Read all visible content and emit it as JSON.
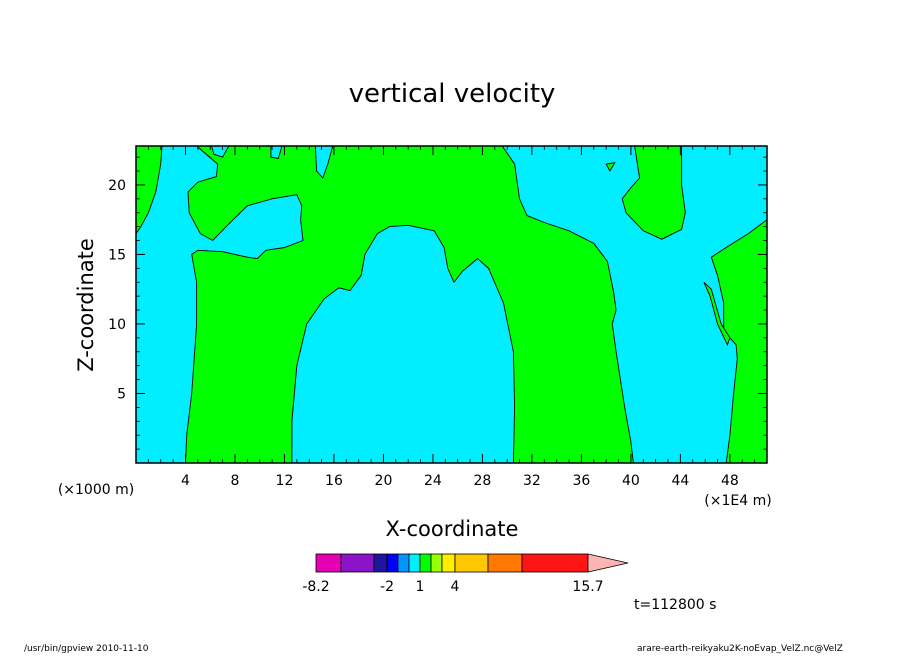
{
  "chart_data": {
    "type": "heatmap",
    "title": "vertical velocity",
    "xlabel": "X-coordinate",
    "ylabel": "Z-coordinate",
    "x_scale_note": "(×1000 m)",
    "x_unit_note": "(×1E4 m)",
    "xlim": [
      0,
      51
    ],
    "ylim": [
      0,
      22.8
    ],
    "x_ticks": [
      4,
      8,
      12,
      16,
      20,
      24,
      28,
      32,
      36,
      40,
      44,
      48
    ],
    "y_ticks": [
      5,
      10,
      15,
      20
    ],
    "fill_colors": {
      "positive": "#00ff00",
      "negative": "#00eeff"
    },
    "regions": [
      {
        "sign": "positive",
        "pts": [
          [
            0.0,
            22.8
          ],
          [
            2.1,
            22.8
          ],
          [
            2.0,
            21.5
          ],
          [
            1.6,
            19.5
          ],
          [
            1.0,
            18.0
          ],
          [
            0.4,
            17.0
          ],
          [
            0.0,
            16.5
          ]
        ]
      },
      {
        "sign": "positive",
        "pts": [
          [
            2.1,
            22.8
          ],
          [
            6.1,
            22.8
          ],
          [
            6.3,
            22.2
          ],
          [
            7.0,
            22.0
          ],
          [
            7.5,
            22.8
          ],
          [
            10.9,
            22.8
          ],
          [
            10.9,
            22.0
          ],
          [
            11.5,
            21.9
          ],
          [
            11.8,
            22.8
          ],
          [
            14.5,
            22.8
          ],
          [
            14.6,
            21.0
          ],
          [
            15.1,
            20.5
          ],
          [
            15.5,
            21.5
          ],
          [
            15.9,
            22.8
          ],
          [
            29.6,
            22.8
          ],
          [
            30.6,
            21.5
          ],
          [
            31.0,
            19.0
          ],
          [
            31.6,
            17.8
          ],
          [
            33.0,
            17.3
          ],
          [
            35.0,
            16.7
          ],
          [
            37.0,
            15.8
          ],
          [
            38.1,
            14.5
          ],
          [
            38.6,
            12.3
          ],
          [
            38.8,
            11.0
          ],
          [
            38.5,
            10.0
          ],
          [
            38.8,
            8.0
          ],
          [
            39.5,
            4.0
          ],
          [
            40.0,
            1.5
          ],
          [
            40.2,
            0.0
          ],
          [
            30.5,
            0.0
          ],
          [
            30.6,
            4.0
          ],
          [
            30.5,
            8.0
          ],
          [
            29.7,
            11.5
          ],
          [
            28.5,
            14.0
          ],
          [
            27.6,
            14.7
          ],
          [
            26.4,
            13.8
          ],
          [
            25.7,
            13.0
          ],
          [
            25.2,
            14.0
          ],
          [
            24.9,
            15.5
          ],
          [
            24.1,
            16.7
          ],
          [
            22.0,
            17.1
          ],
          [
            20.5,
            17.0
          ],
          [
            19.5,
            16.5
          ],
          [
            18.5,
            15.0
          ],
          [
            18.2,
            13.5
          ],
          [
            17.3,
            12.4
          ],
          [
            16.4,
            12.6
          ],
          [
            15.2,
            11.8
          ],
          [
            13.8,
            10.0
          ],
          [
            13.0,
            7.0
          ],
          [
            12.6,
            3.0
          ],
          [
            12.6,
            0.0
          ],
          [
            4.0,
            0.0
          ],
          [
            4.1,
            2.0
          ],
          [
            4.5,
            5.0
          ],
          [
            4.9,
            10.0
          ],
          [
            4.9,
            13.0
          ],
          [
            4.5,
            15.0
          ],
          [
            5.0,
            15.3
          ],
          [
            7.0,
            15.2
          ],
          [
            9.0,
            14.8
          ],
          [
            9.8,
            14.7
          ],
          [
            10.5,
            15.3
          ],
          [
            12.0,
            15.5
          ],
          [
            13.5,
            16.0
          ],
          [
            13.3,
            17.5
          ],
          [
            13.4,
            18.5
          ],
          [
            13.0,
            19.3
          ],
          [
            11.0,
            19.0
          ],
          [
            9.0,
            18.5
          ],
          [
            7.5,
            17.2
          ],
          [
            6.2,
            16.0
          ],
          [
            5.2,
            16.5
          ],
          [
            4.3,
            18.0
          ],
          [
            4.2,
            19.5
          ],
          [
            5.0,
            20.2
          ],
          [
            6.5,
            20.6
          ],
          [
            6.6,
            21.5
          ],
          [
            4.9,
            22.8
          ]
        ]
      },
      {
        "sign": "positive",
        "pts": [
          [
            40.3,
            22.8
          ],
          [
            44.1,
            22.8
          ],
          [
            44.1,
            20.0
          ],
          [
            44.4,
            18.0
          ],
          [
            44.1,
            16.8
          ],
          [
            42.5,
            16.1
          ],
          [
            41.0,
            16.7
          ],
          [
            39.6,
            18.0
          ],
          [
            39.3,
            19.0
          ],
          [
            40.0,
            19.8
          ],
          [
            40.7,
            20.5
          ]
        ]
      },
      {
        "sign": "positive",
        "pts": [
          [
            38.0,
            21.5
          ],
          [
            38.3,
            21.0
          ],
          [
            38.7,
            21.6
          ]
        ]
      },
      {
        "sign": "positive",
        "pts": [
          [
            51.0,
            17.5
          ],
          [
            49.5,
            16.5
          ],
          [
            48.6,
            16.0
          ],
          [
            47.7,
            15.5
          ],
          [
            46.5,
            14.8
          ],
          [
            47.0,
            13.5
          ],
          [
            47.5,
            11.5
          ],
          [
            47.5,
            9.5
          ],
          [
            48.5,
            8.5
          ],
          [
            48.6,
            7.5
          ],
          [
            48.3,
            5.0
          ],
          [
            48.0,
            2.0
          ],
          [
            47.7,
            0.0
          ],
          [
            51.0,
            0.0
          ]
        ]
      },
      {
        "sign": "positive",
        "pts": [
          [
            45.9,
            13.0
          ],
          [
            46.5,
            12.5
          ],
          [
            47.3,
            10.0
          ],
          [
            48.0,
            9.0
          ],
          [
            47.8,
            8.5
          ],
          [
            47.0,
            10.0
          ],
          [
            46.4,
            12.0
          ]
        ]
      }
    ],
    "colorbar": {
      "tick_labels": [
        "-8.2",
        "-2",
        "1",
        "4",
        "15.7"
      ],
      "colors": [
        "#e600b4",
        "#8c14c8",
        "#1e14a0",
        "#0000ff",
        "#0096ff",
        "#00eeff",
        "#00ff00",
        "#96ff00",
        "#ffee00",
        "#ffc800",
        "#ff7800",
        "#ff1414",
        "#ff8080",
        "#ffb4b4"
      ]
    },
    "time_label": "t=112800 s"
  },
  "footer": {
    "left": "/usr/bin/gpview  2010-11-10",
    "right": "arare-earth-reikyaku2K-noEvap_VelZ.nc@VelZ"
  }
}
